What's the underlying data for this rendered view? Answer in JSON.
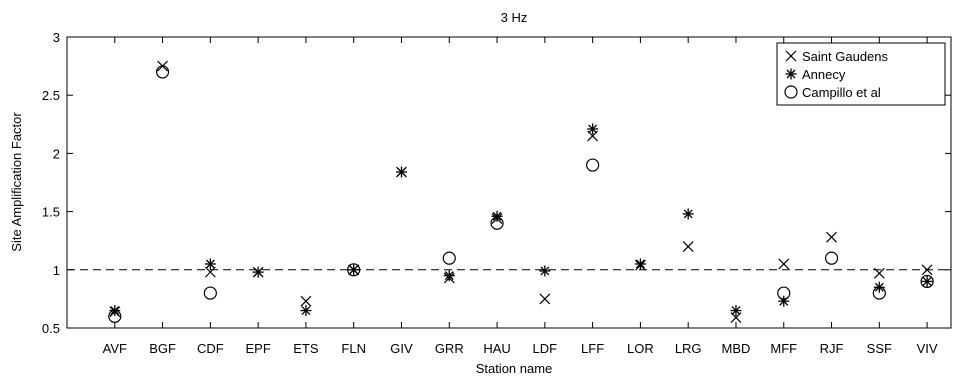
{
  "chart_data": {
    "type": "scatter",
    "title": "3 Hz",
    "xlabel": "Station name",
    "ylabel": "Site Amplification Factor",
    "ylim": [
      0.5,
      3
    ],
    "yticks": [
      0.5,
      1,
      1.5,
      2,
      2.5,
      3
    ],
    "ytick_labels": [
      "0.5",
      "1",
      "1.5",
      "2",
      "2.5",
      "3"
    ],
    "categories": [
      "AVF",
      "BGF",
      "CDF",
      "EPF",
      "ETS",
      "FLN",
      "GIV",
      "GRR",
      "HAU",
      "LDF",
      "LFF",
      "LOR",
      "LRG",
      "MBD",
      "MFF",
      "RJF",
      "SSF",
      "VIV"
    ],
    "reference_line": 1,
    "grid": false,
    "legend_position": "top-right",
    "series": [
      {
        "name": "Saint Gaudens",
        "marker": "x",
        "values": [
          0.64,
          2.75,
          0.98,
          0.98,
          0.73,
          1.0,
          1.84,
          0.93,
          1.44,
          0.75,
          2.15,
          1.04,
          1.2,
          0.59,
          1.05,
          1.28,
          0.97,
          1.0
        ]
      },
      {
        "name": "Annecy",
        "marker": "asterisk",
        "values": [
          0.65,
          null,
          1.05,
          0.98,
          0.65,
          1.0,
          1.84,
          0.95,
          1.46,
          0.99,
          2.21,
          1.05,
          1.48,
          0.65,
          0.73,
          null,
          0.85,
          0.9
        ]
      },
      {
        "name": "Campillo et al",
        "marker": "circle",
        "values": [
          0.6,
          2.7,
          0.8,
          null,
          null,
          1.0,
          null,
          1.1,
          1.4,
          null,
          1.9,
          null,
          null,
          null,
          0.8,
          1.1,
          0.8,
          0.9
        ]
      }
    ]
  },
  "colors": {
    "marker": "#000000",
    "axes": "#000000",
    "background": "#ffffff"
  }
}
